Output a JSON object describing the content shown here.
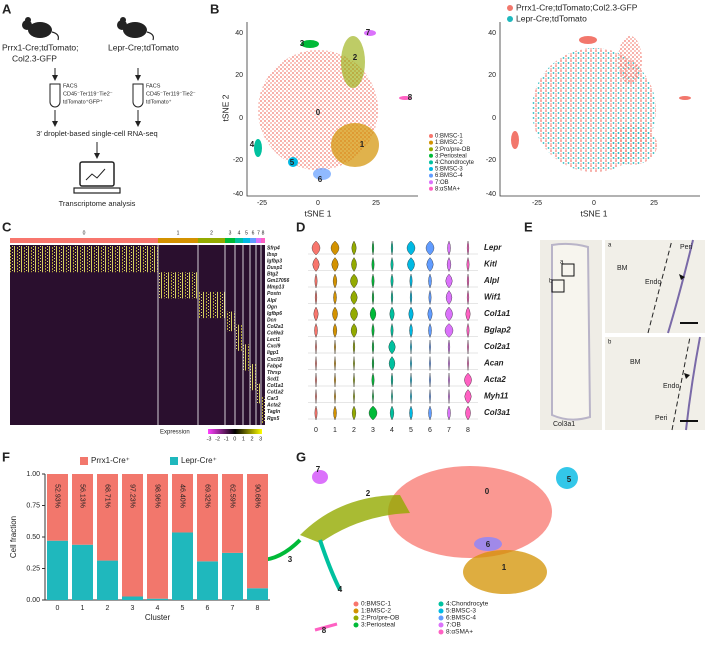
{
  "panel_labels": [
    "A",
    "B",
    "C",
    "D",
    "E",
    "F",
    "G"
  ],
  "cluster_ids": [
    "0",
    "1",
    "2",
    "3",
    "4",
    "5",
    "6",
    "7",
    "8"
  ],
  "clusters": [
    "0:BMSC-1",
    "1:BMSC-2",
    "2:Pro/pre-OB",
    "3:Periosteal",
    "4:Chondrocyte",
    "5:BMSC-3",
    "6:BMSC-4",
    "7:OB",
    "8:αSMA+"
  ],
  "panel_a": {
    "mouse_1": [
      "Prrx1-Cre;tdTomato;",
      "Col2.3-GFP"
    ],
    "mouse_2": "Lepr-Cre;tdTomato",
    "facs_1": [
      "FACS",
      "CD45⁻Ter119⁻Tie2⁻",
      "tdTomato⁺GFP⁺"
    ],
    "facs_2": [
      "FACS",
      "CD45⁻Ter119⁻Tie2⁻",
      "tdTomato⁺"
    ],
    "method": "3′ droplet-based single-cell RNA-seq",
    "analysis": "Transcriptome analysis"
  },
  "panel_b": {
    "x_label": "tSNE 1",
    "y_label": "tSNE 2",
    "xticks": [
      "-25",
      "0",
      "25"
    ],
    "yticks": [
      "40",
      "20",
      "0",
      "-20",
      "-40"
    ],
    "legend_right": [
      "Prrx1-Cre;tdTomato;Col2.3-GFP",
      "Lepr-Cre;tdTomato"
    ]
  },
  "panel_c": {
    "genes": [
      "Sfrp4",
      "Ibsp",
      "Igfbp3",
      "Dusp1",
      "Btg2",
      "Gm17056",
      "Mmp13",
      "Postn",
      "Alpl",
      "Ogn",
      "Igfbp6",
      "Dcn",
      "Col2a1",
      "Col9a3",
      "Lect1",
      "Cxcl9",
      "Iigp1",
      "Cxcl10",
      "Fabp4",
      "Thrsp",
      "Scd1",
      "Col1a1",
      "Col1a2",
      "Car3",
      "Acta2",
      "Tagln",
      "Rgs5"
    ],
    "legend_title": "Expression",
    "legend_ticks": [
      "-3",
      "-2",
      "-1",
      "0",
      "1",
      "2",
      "3"
    ]
  },
  "panel_d": {
    "genes": [
      "Lepr",
      "Kitl",
      "Alpl",
      "Wif1",
      "Col1a1",
      "Bglap2",
      "Col2a1",
      "Acan",
      "Acta2",
      "Myh11",
      "Col3a1"
    ]
  },
  "panel_e": {
    "stain": "Col3a1",
    "box_labels": [
      "a",
      "b"
    ],
    "inset_a": {
      "tag": "a",
      "labels": [
        "BM",
        "Endo",
        "Peri"
      ]
    },
    "inset_b": {
      "tag": "b",
      "labels": [
        "BM",
        "Endo",
        "Peri"
      ]
    }
  },
  "chart_data": {
    "type": "bar",
    "stacked": true,
    "x_label": "Cluster",
    "y_label": "Cell fraction",
    "categories": [
      "0",
      "1",
      "2",
      "3",
      "4",
      "5",
      "6",
      "7",
      "8"
    ],
    "series": [
      {
        "name": "Lepr-Cre⁺",
        "color": "#1fb8bd",
        "values": [
          0.4707,
          0.4387,
          0.3129,
          0.0277,
          0.0104,
          0.536,
          0.3068,
          0.3741,
          0.0932
        ]
      },
      {
        "name": "Prrx1-Cre⁺",
        "color": "#f2776c",
        "values": [
          0.5293,
          0.5613,
          0.6871,
          0.9723,
          0.9896,
          0.464,
          0.6932,
          0.6259,
          0.9068
        ],
        "value_labels": [
          "52.93%",
          "56.13%",
          "68.71%",
          "97.23%",
          "98.96%",
          "46.40%",
          "69.32%",
          "62.59%",
          "90.68%"
        ]
      }
    ],
    "ylim": [
      0,
      1
    ],
    "yticks": [
      {
        "value": 0,
        "label": "0.00"
      },
      {
        "value": 0.25,
        "label": "0.25"
      },
      {
        "value": 0.5,
        "label": "0.50"
      },
      {
        "value": 0.75,
        "label": "0.75"
      },
      {
        "value": 1,
        "label": "1.00"
      }
    ],
    "legend": "top"
  }
}
